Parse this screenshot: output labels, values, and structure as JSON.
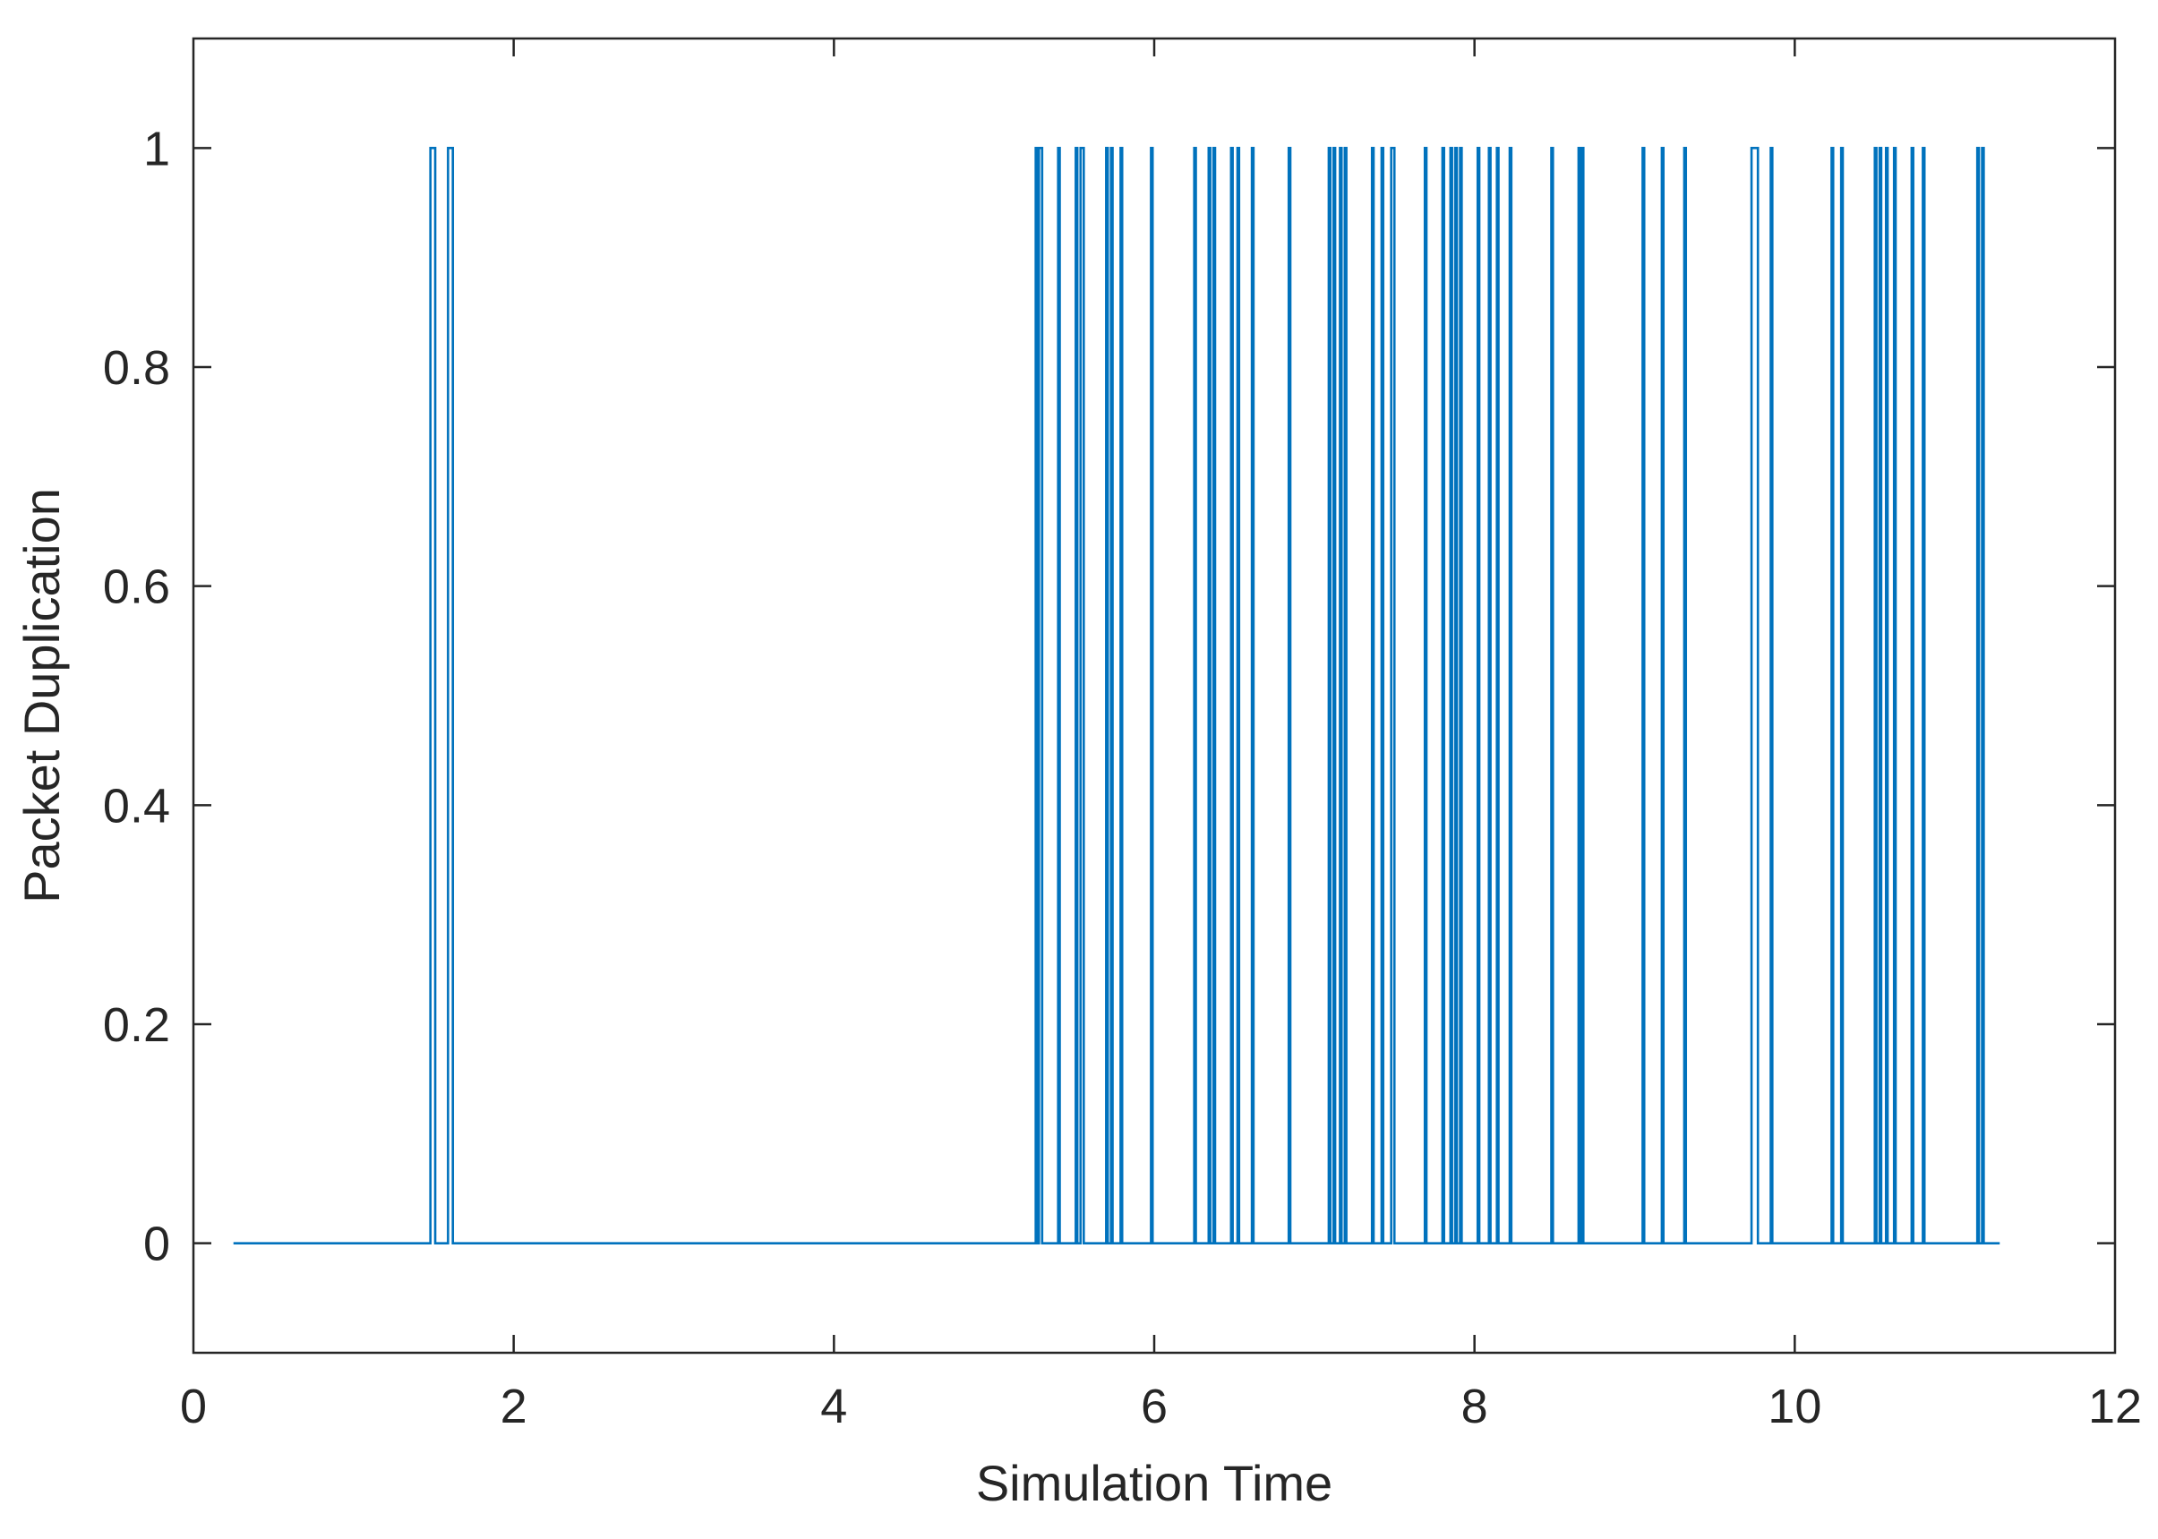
{
  "chart_data": {
    "type": "line",
    "title": "",
    "xlabel": "Simulation Time",
    "ylabel": "Packet Duplication",
    "xlim": [
      0,
      12
    ],
    "ylim": [
      -0.1,
      1.1
    ],
    "xticks": [
      0,
      2,
      4,
      6,
      8,
      10,
      12
    ],
    "yticks": [
      0,
      0.2,
      0.4,
      0.6,
      0.8,
      1
    ],
    "xtick_labels": [
      "0",
      "2",
      "4",
      "6",
      "8",
      "10",
      "12"
    ],
    "ytick_labels": [
      "0",
      "0.2",
      "0.4",
      "0.6",
      "0.8",
      "1"
    ],
    "grid": false,
    "legend": "none",
    "line_color": "#0072BD",
    "series": [
      {
        "step": true,
        "x_start": 0.25,
        "x_end": 11.28,
        "initial_value": 0,
        "transitions": [
          1.48,
          1.51,
          1.59,
          1.62,
          5.26,
          5.27,
          5.28,
          5.3,
          5.4,
          5.41,
          5.51,
          5.52,
          5.54,
          5.56,
          5.7,
          5.71,
          5.73,
          5.74,
          5.79,
          5.8,
          5.98,
          5.99,
          6.25,
          6.26,
          6.34,
          6.35,
          6.37,
          6.38,
          6.48,
          6.49,
          6.52,
          6.53,
          6.61,
          6.62,
          6.84,
          6.85,
          7.09,
          7.1,
          7.12,
          7.13,
          7.16,
          7.17,
          7.19,
          7.2,
          7.36,
          7.37,
          7.42,
          7.43,
          7.48,
          7.5,
          7.69,
          7.7,
          7.8,
          7.81,
          7.85,
          7.86,
          7.88,
          7.89,
          7.91,
          7.92,
          8.02,
          8.03,
          8.09,
          8.1,
          8.14,
          8.15,
          8.22,
          8.23,
          8.48,
          8.49,
          8.65,
          8.66,
          8.67,
          8.68,
          9.05,
          9.06,
          9.17,
          9.18,
          9.31,
          9.32,
          9.73,
          9.77,
          9.85,
          9.86,
          10.23,
          10.24,
          10.29,
          10.3,
          10.5,
          10.51,
          10.53,
          10.54,
          10.57,
          10.58,
          10.62,
          10.63,
          10.73,
          10.74,
          10.8,
          10.81,
          11.14,
          11.15,
          11.17,
          11.18
        ]
      }
    ]
  }
}
